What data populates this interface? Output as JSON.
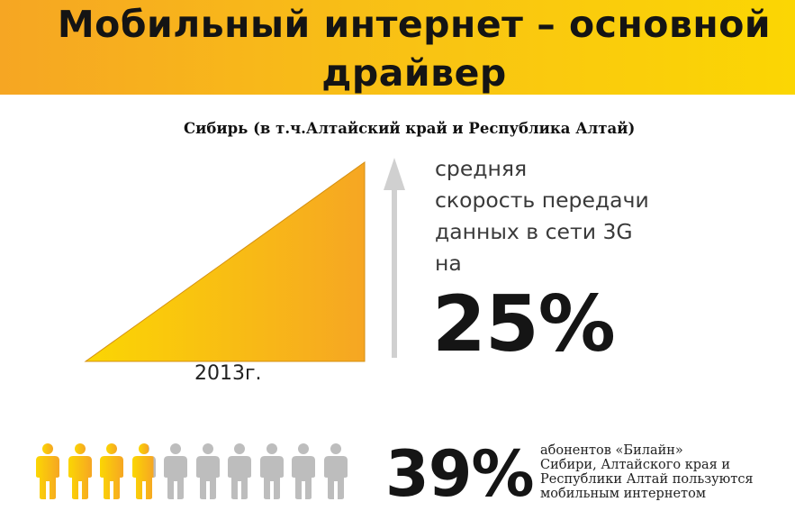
{
  "header": {
    "title_line1": "Мобильный интернет – основной",
    "title_line2": "драйвер"
  },
  "region": "Сибирь (в т.ч.Алтайский край и Республика Алтай)",
  "speed": {
    "year": "2013г.",
    "description": [
      "средняя",
      "скорость передачи",
      "данных в сети 3G",
      "на"
    ],
    "percent": "25%",
    "growth_fraction": 0.25
  },
  "subscribers": {
    "percent": "39%",
    "value": 39,
    "icons_total": 10,
    "icons_highlighted": 3.9,
    "description": [
      "абонентов «Билайн»",
      "Сибири, Алтайского края и",
      "Республики Алтай пользуются",
      "мобильным интернетом"
    ]
  },
  "colors": {
    "accent_orange": "#f6a623",
    "accent_yellow": "#fbd603",
    "icon_gray": "#bdbdbd",
    "arrow_gray": "#d0d0d0"
  },
  "icons": [
    "up-arrow-icon",
    "person-icon"
  ]
}
